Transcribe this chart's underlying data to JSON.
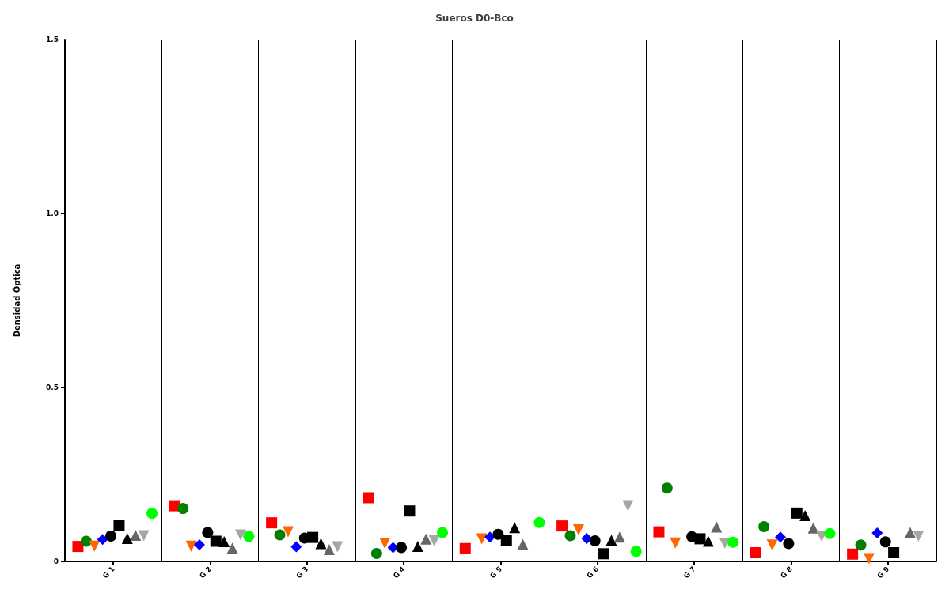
{
  "chart_data": {
    "type": "scatter",
    "title": "Sueros D0-Bco",
    "ylabel": "Densidad Óptica",
    "categories": [
      "G 1",
      "G 2",
      "G 3",
      "G 4",
      "G 5",
      "G 6",
      "G 7",
      "G 8",
      "G 9"
    ],
    "ylim": [
      0,
      1.5
    ],
    "yticks": [
      0,
      0.5,
      {
        "value": 1,
        "label": "1.0"
      },
      1.5
    ],
    "grid": "x",
    "series": [
      {
        "color": "#ff0000",
        "marker": "square",
        "values": [
          0.043,
          0.16,
          0.111,
          0.183,
          0.037,
          0.102,
          0.085,
          0.025,
          0.021
        ]
      },
      {
        "color": "#007f00",
        "marker": "circle",
        "values": [
          0.058,
          0.152,
          0.076,
          0.023,
          null,
          0.074,
          0.211,
          0.1,
          0.047
        ]
      },
      {
        "color": "#ff6600",
        "marker": "triangle-down",
        "values": [
          0.044,
          0.044,
          0.085,
          0.052,
          0.065,
          0.091,
          0.053,
          0.047,
          0.008
        ]
      },
      {
        "color": "#0000ff",
        "marker": "diamond",
        "values": [
          0.063,
          0.048,
          0.042,
          0.04,
          0.07,
          0.066,
          null,
          0.07,
          0.082
        ]
      },
      {
        "color": "#000000",
        "marker": "circle",
        "values": [
          0.073,
          0.083,
          0.067,
          0.04,
          0.078,
          0.059,
          0.071,
          0.051,
          0.056
        ]
      },
      {
        "color": "#000000",
        "marker": "square",
        "values": [
          0.103,
          0.058,
          0.069,
          0.145,
          0.061,
          0.022,
          0.065,
          0.139,
          0.025
        ]
      },
      {
        "color": "#000000",
        "marker": "triangle",
        "values": [
          0.066,
          0.057,
          0.051,
          0.043,
          0.097,
          0.061,
          0.058,
          0.132,
          null
        ]
      },
      {
        "color": "#666666",
        "marker": "triangle",
        "values": [
          0.075,
          0.038,
          0.034,
          0.064,
          0.049,
          0.07,
          0.099,
          0.096,
          0.083
        ]
      },
      {
        "color": "#a6a6a6",
        "marker": "triangle-down",
        "values": [
          0.074,
          0.076,
          0.042,
          0.059,
          null,
          0.16,
          0.052,
          0.073,
          0.073
        ]
      },
      {
        "color": "#00ff00",
        "marker": "circle",
        "values": [
          0.138,
          0.072,
          null,
          0.083,
          0.112,
          0.029,
          0.055,
          0.08,
          null
        ]
      }
    ]
  }
}
